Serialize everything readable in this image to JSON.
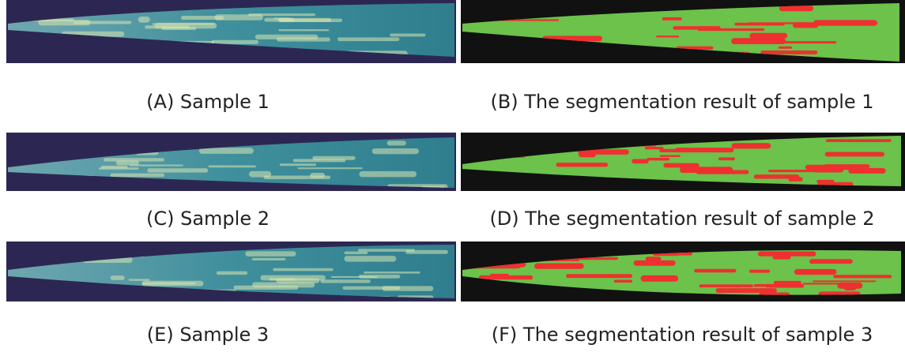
{
  "panels": [
    {
      "caption": "(A) Sample 1"
    },
    {
      "caption": "(B) The segmentation result of sample 1"
    },
    {
      "caption": "(C) Sample 2"
    },
    {
      "caption": "(D) The segmentation result of sample 2"
    },
    {
      "caption": "(E) Sample 3"
    },
    {
      "caption": "(F) The segmentation result of sample 3"
    }
  ]
}
